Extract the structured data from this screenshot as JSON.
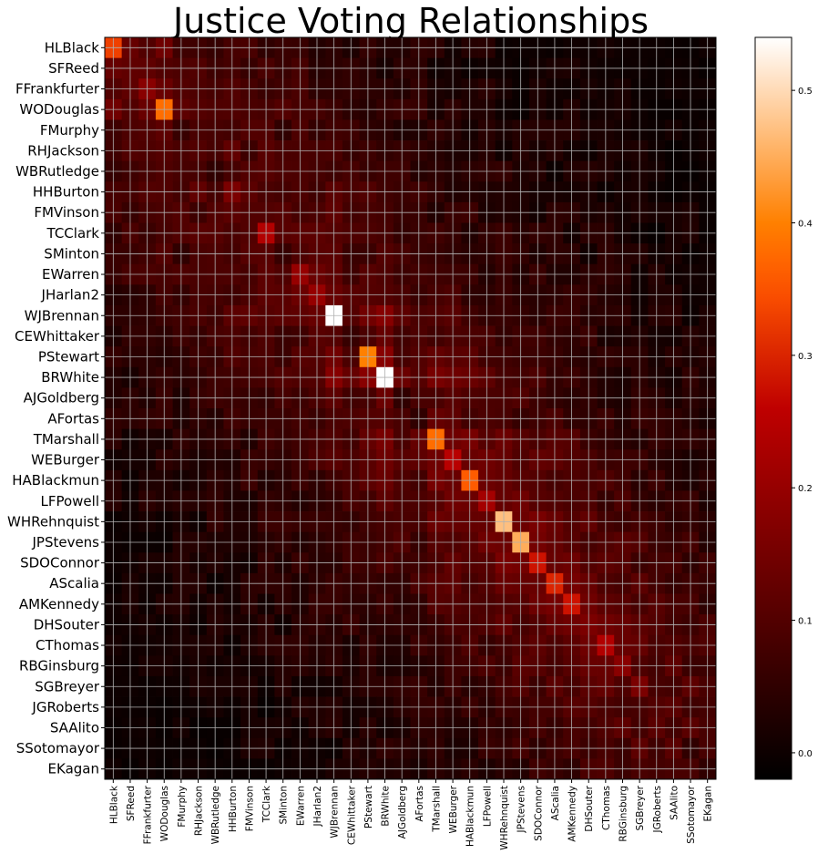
{
  "chart_data": {
    "type": "heatmap",
    "title": "Justice Voting Relationships",
    "xlabel": "",
    "ylabel": "",
    "justices": [
      "HLBlack",
      "SFReed",
      "FFrankfurter",
      "WODouglas",
      "FMurphy",
      "RHJackson",
      "WBRutledge",
      "HHBurton",
      "FMVinson",
      "TCClark",
      "SMinton",
      "EWarren",
      "JHarlan2",
      "WJBrennan",
      "CEWhittaker",
      "PStewart",
      "BRWhite",
      "AJGoldberg",
      "AFortas",
      "TMarshall",
      "WEBurger",
      "HABlackmun",
      "LFPowell",
      "WHRehnquist",
      "JPStevens",
      "SDOConnor",
      "AScalia",
      "AMKennedy",
      "DHSouter",
      "CThomas",
      "RBGinsburg",
      "SGBreyer",
      "JGRoberts",
      "SAAlito",
      "SSotomayor",
      "EKagan"
    ],
    "diagonal": [
      0.33,
      0.12,
      0.18,
      0.38,
      0.06,
      0.1,
      0.05,
      0.16,
      0.1,
      0.24,
      0.06,
      0.2,
      0.2,
      0.54,
      0.06,
      0.4,
      0.54,
      0.05,
      0.05,
      0.38,
      0.25,
      0.36,
      0.22,
      0.47,
      0.45,
      0.28,
      0.3,
      0.28,
      0.16,
      0.24,
      0.18,
      0.16,
      0.1,
      0.08,
      0.05,
      0.05
    ],
    "clim": [
      -0.02,
      0.54
    ],
    "colorbar_ticks": [
      "0.0",
      "0.1",
      "0.2",
      "0.3",
      "0.4",
      "0.5"
    ],
    "colorbar_tick_values": [
      0.0,
      0.1,
      0.2,
      0.3,
      0.4,
      0.5
    ],
    "colormap": "gist_heat",
    "grid": true
  }
}
